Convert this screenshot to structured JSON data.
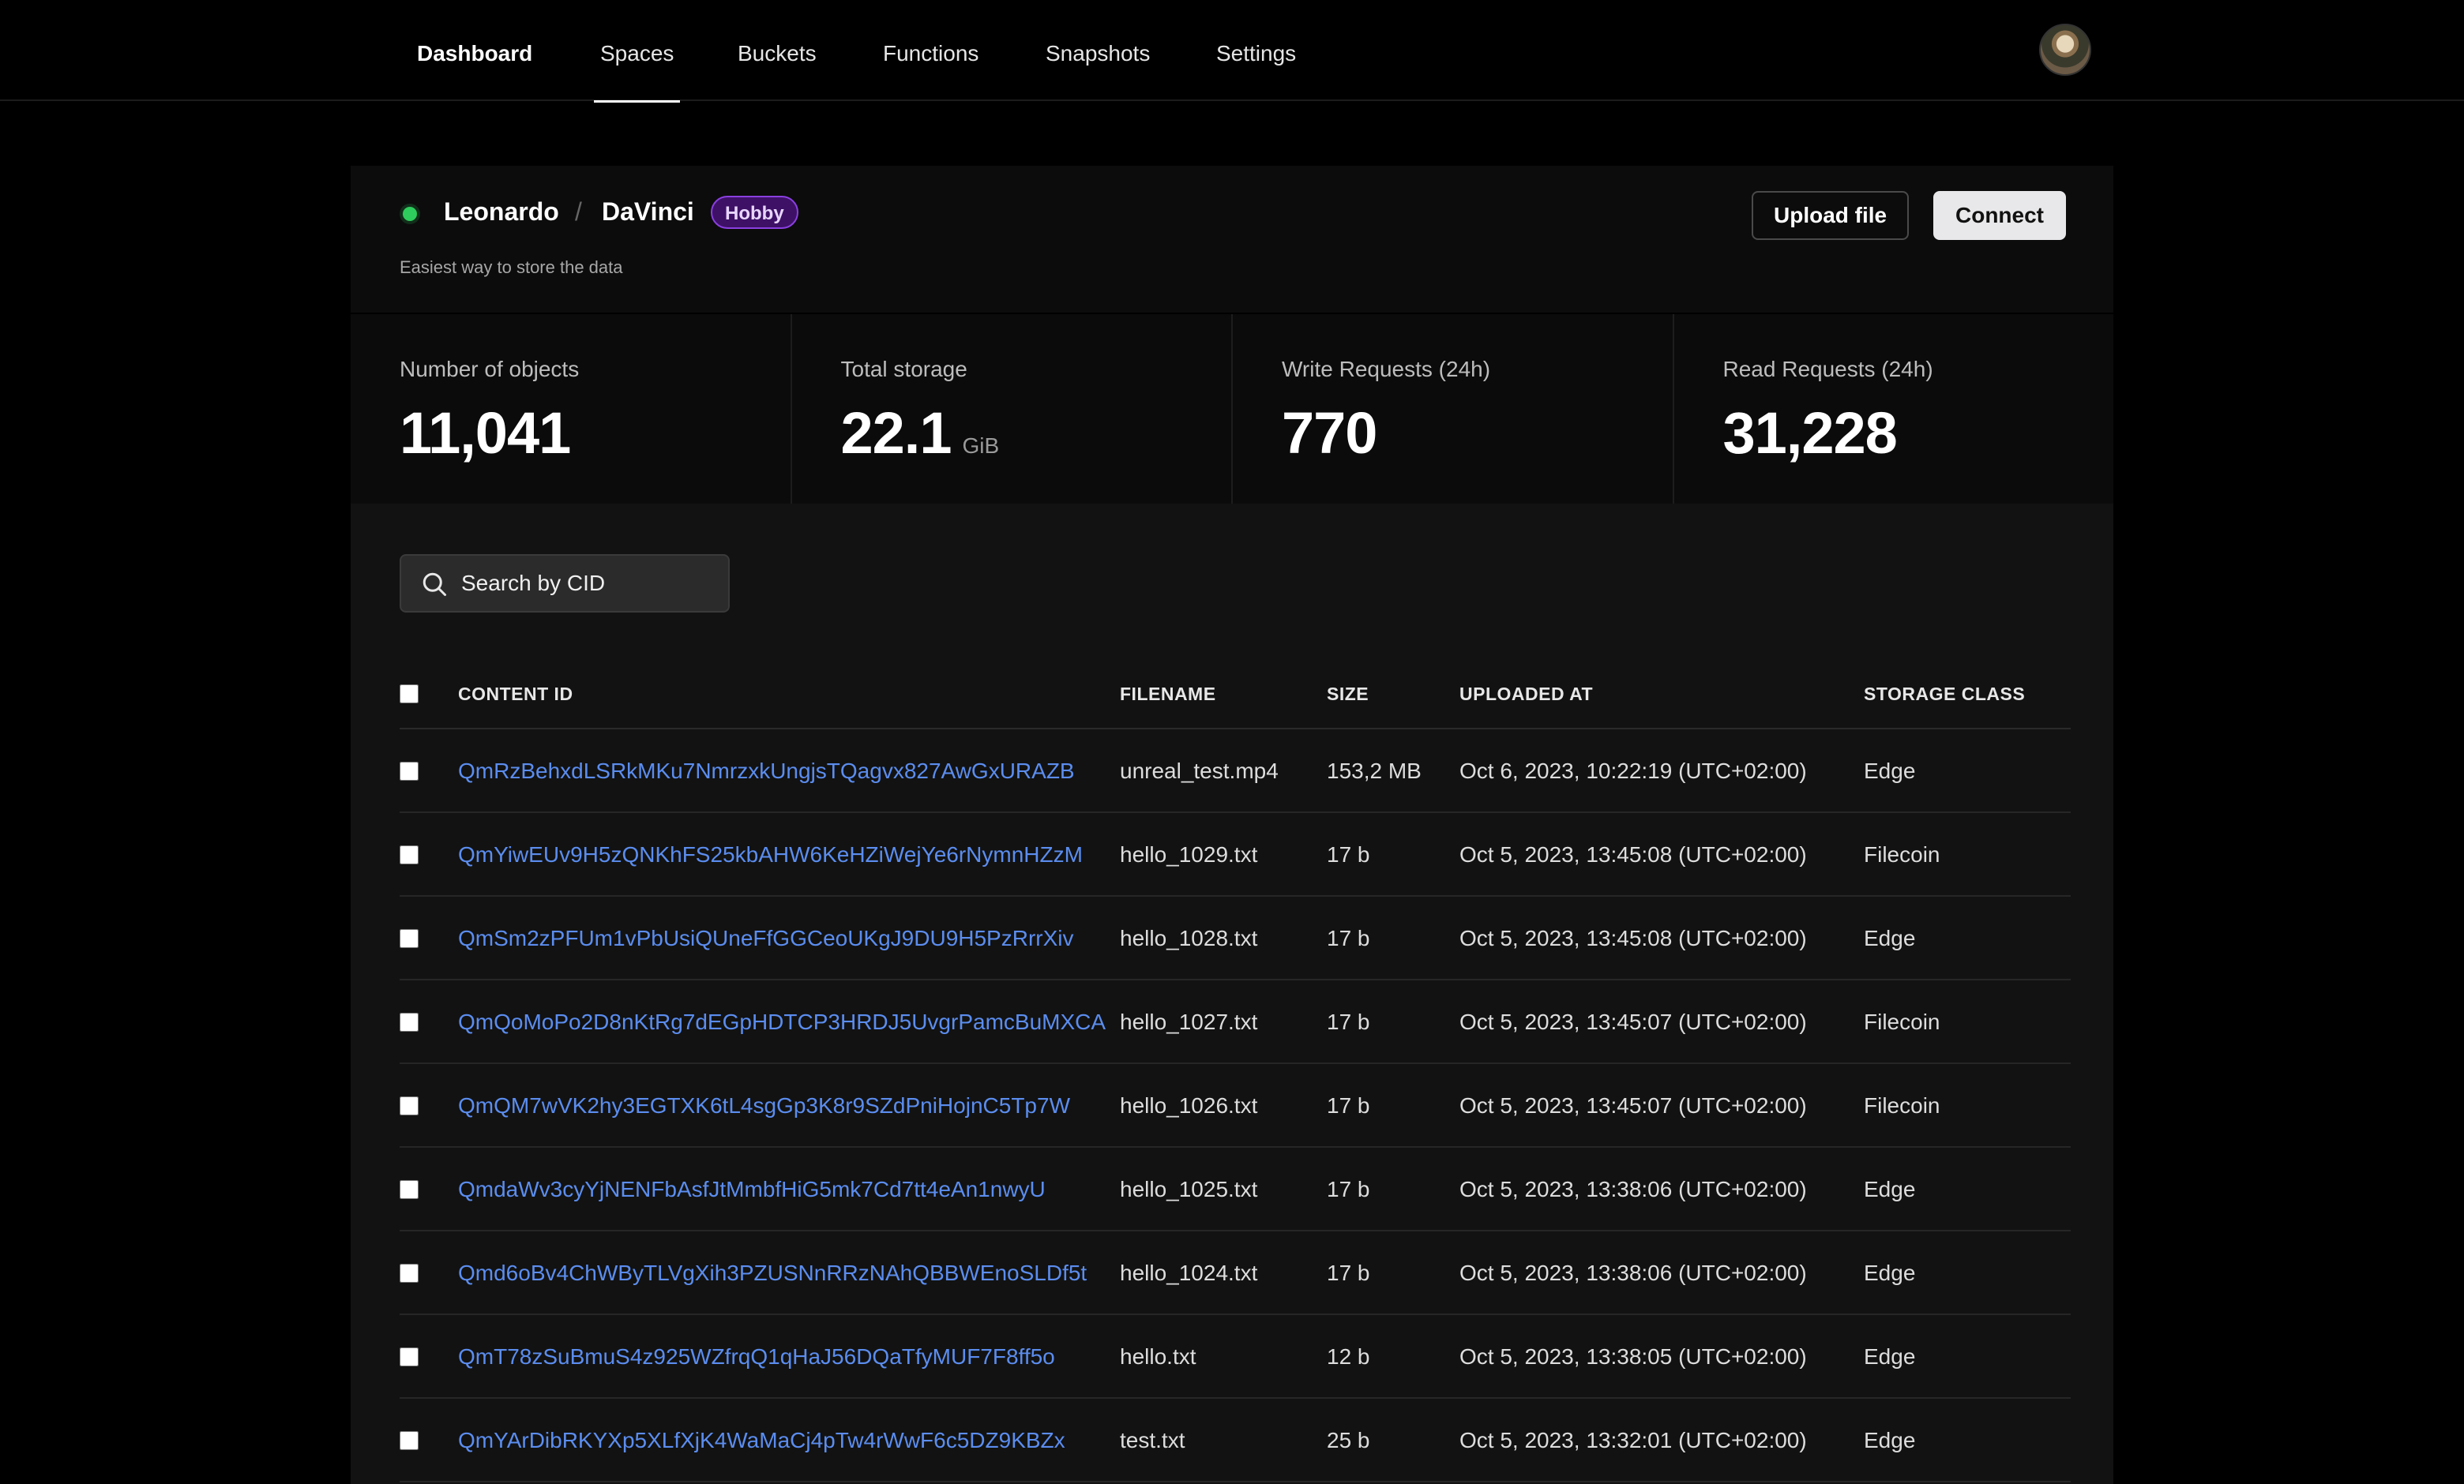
{
  "nav": {
    "items": [
      {
        "label": "Dashboard"
      },
      {
        "label": "Spaces"
      },
      {
        "label": "Buckets"
      },
      {
        "label": "Functions"
      },
      {
        "label": "Snapshots"
      },
      {
        "label": "Settings"
      }
    ],
    "active": "Spaces"
  },
  "header": {
    "owner": "Leonardo",
    "separator": "/",
    "space": "DaVinci",
    "badge": "Hobby",
    "subtitle": "Easiest way to store the data",
    "upload_label": "Upload file",
    "connect_label": "Connect",
    "status_color": "#2ecc5c"
  },
  "stats": [
    {
      "label": "Number of objects",
      "value": "11,041",
      "unit": ""
    },
    {
      "label": "Total storage",
      "value": "22.1",
      "unit": "GiB"
    },
    {
      "label": "Write Requests (24h)",
      "value": "770",
      "unit": ""
    },
    {
      "label": "Read Requests (24h)",
      "value": "31,228",
      "unit": ""
    }
  ],
  "search": {
    "placeholder": "Search by CID",
    "icon": "search-icon"
  },
  "table": {
    "columns": {
      "cid": "CONTENT ID",
      "filename": "FILENAME",
      "size": "SIZE",
      "uploaded": "UPLOADED AT",
      "storage": "STORAGE CLASS"
    },
    "rows": [
      {
        "cid": "QmRzBehxdLSRkMKu7NmrzxkUngjsTQagvx827AwGxURAZB",
        "filename": "unreal_test.mp4",
        "size": "153,2 MB",
        "uploaded": "Oct 6, 2023, 10:22:19 (UTC+02:00)",
        "storage": "Edge"
      },
      {
        "cid": "QmYiwEUv9H5zQNKhFS25kbAHW6KeHZiWejYe6rNymnHZzM",
        "filename": "hello_1029.txt",
        "size": "17 b",
        "uploaded": "Oct 5, 2023, 13:45:08 (UTC+02:00)",
        "storage": "Filecoin"
      },
      {
        "cid": "QmSm2zPFUm1vPbUsiQUneFfGGCeoUKgJ9DU9H5PzRrrXiv",
        "filename": "hello_1028.txt",
        "size": "17 b",
        "uploaded": "Oct 5, 2023, 13:45:08 (UTC+02:00)",
        "storage": "Edge"
      },
      {
        "cid": "QmQoMoPo2D8nKtRg7dEGpHDTCP3HRDJ5UvgrPamcBuMXCA",
        "filename": "hello_1027.txt",
        "size": "17 b",
        "uploaded": "Oct 5, 2023, 13:45:07 (UTC+02:00)",
        "storage": "Filecoin"
      },
      {
        "cid": "QmQM7wVK2hy3EGTXK6tL4sgGp3K8r9SZdPniHojnC5Tp7W",
        "filename": "hello_1026.txt",
        "size": "17 b",
        "uploaded": "Oct 5, 2023, 13:45:07 (UTC+02:00)",
        "storage": "Filecoin"
      },
      {
        "cid": "QmdaWv3cyYjNENFbAsfJtMmbfHiG5mk7Cd7tt4eAn1nwyU",
        "filename": "hello_1025.txt",
        "size": "17 b",
        "uploaded": "Oct 5, 2023, 13:38:06 (UTC+02:00)",
        "storage": "Edge"
      },
      {
        "cid": "Qmd6oBv4ChWByTLVgXih3PZUSNnRRzNAhQBBWEnoSLDf5t",
        "filename": "hello_1024.txt",
        "size": "17 b",
        "uploaded": "Oct 5, 2023, 13:38:06 (UTC+02:00)",
        "storage": "Edge"
      },
      {
        "cid": "QmT78zSuBmuS4z925WZfrqQ1qHaJ56DQaTfyMUF7F8ff5o",
        "filename": "hello.txt",
        "size": "12 b",
        "uploaded": "Oct 5, 2023, 13:38:05 (UTC+02:00)",
        "storage": "Edge"
      },
      {
        "cid": "QmYArDibRKYXp5XLfXjK4WaMaCj4pTw4rWwF6c5DZ9KBZx",
        "filename": "test.txt",
        "size": "25 b",
        "uploaded": "Oct 5, 2023, 13:32:01 (UTC+02:00)",
        "storage": "Edge"
      }
    ]
  }
}
